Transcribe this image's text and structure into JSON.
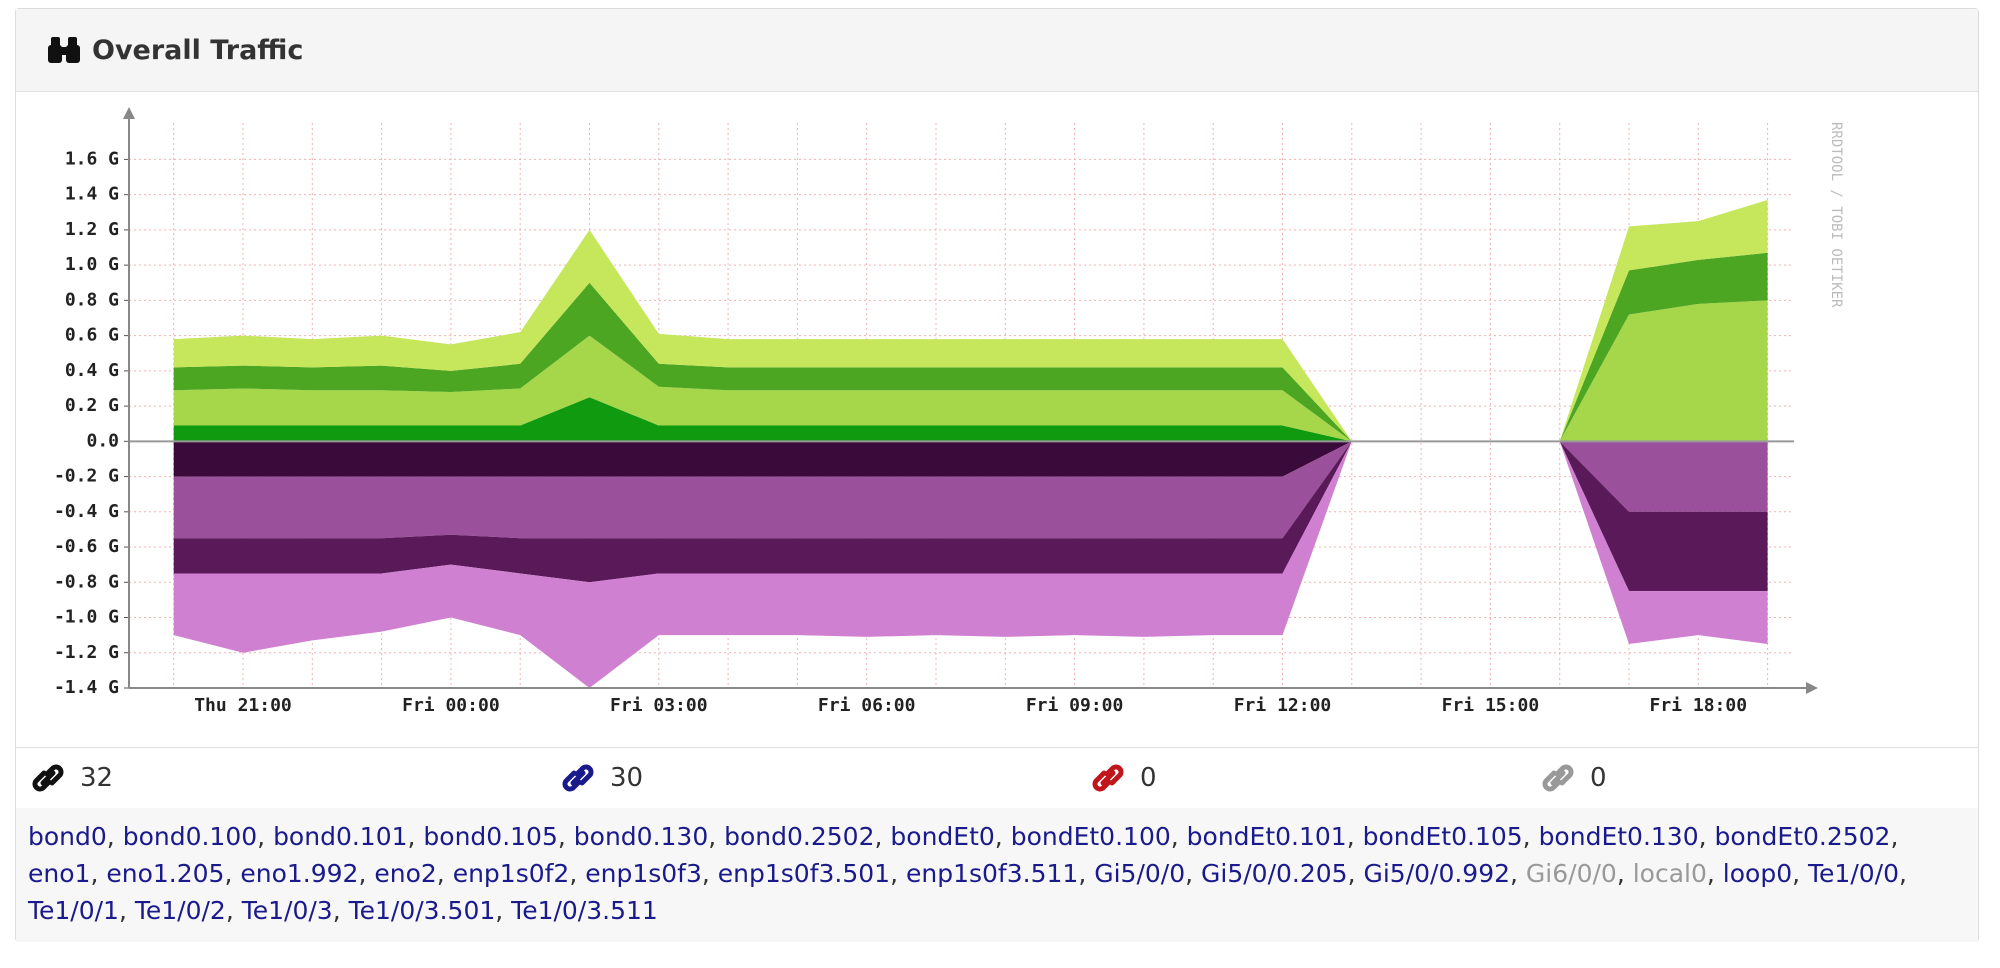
{
  "panel": {
    "title": "Overall Traffic"
  },
  "chart_data": {
    "type": "stacked-area",
    "watermark": "RRDTOOL / TOBI OETIKER",
    "categories": [
      null,
      "Thu 21:00",
      null,
      null,
      "Fri 00:00",
      null,
      null,
      "Fri 03:00",
      null,
      null,
      "Fri 06:00",
      null,
      null,
      "Fri 09:00",
      null,
      null,
      "Fri 12:00",
      null,
      null,
      "Fri 15:00",
      null,
      null,
      "Fri 18:00",
      null
    ],
    "ylim": [
      -1.4,
      1.75
    ],
    "yticks": [
      {
        "value": -1.4,
        "label": "-1.4 G"
      },
      {
        "value": -1.2,
        "label": "-1.2 G"
      },
      {
        "value": -1.0,
        "label": "-1.0 G"
      },
      {
        "value": -0.8,
        "label": "-0.8 G"
      },
      {
        "value": -0.6,
        "label": "-0.6 G"
      },
      {
        "value": -0.4,
        "label": "-0.4 G"
      },
      {
        "value": -0.2,
        "label": "-0.2 G"
      },
      {
        "value": 0,
        "label": "0.0"
      },
      {
        "value": 0.2,
        "label": "0.2 G"
      },
      {
        "value": 0.4,
        "label": "0.4 G"
      },
      {
        "value": 0.6,
        "label": "0.6 G"
      },
      {
        "value": 0.8,
        "label": "0.8 G"
      },
      {
        "value": 1.0,
        "label": "1.0 G"
      },
      {
        "value": 1.2,
        "label": "1.2 G"
      },
      {
        "value": 1.4,
        "label": "1.4 G"
      },
      {
        "value": 1.6,
        "label": "1.6 G"
      }
    ],
    "grid": true,
    "series": [
      {
        "color": "#109a10",
        "values": [
          0.09,
          0.09,
          0.09,
          0.09,
          0.09,
          0.09,
          0.25,
          0.09,
          0.09,
          0.09,
          0.09,
          0.09,
          0.09,
          0.09,
          0.09,
          0.09,
          0.09,
          0,
          0,
          0,
          0,
          0,
          0,
          0
        ]
      },
      {
        "color": "#a6d64a",
        "values": [
          0.2,
          0.21,
          0.2,
          0.2,
          0.19,
          0.21,
          0.35,
          0.22,
          0.2,
          0.2,
          0.2,
          0.2,
          0.2,
          0.2,
          0.2,
          0.2,
          0.2,
          0,
          0,
          0,
          0,
          0.72,
          0.78,
          0.8
        ]
      },
      {
        "color": "#4ca622",
        "values": [
          0.13,
          0.13,
          0.13,
          0.14,
          0.12,
          0.14,
          0.3,
          0.13,
          0.13,
          0.13,
          0.13,
          0.13,
          0.13,
          0.13,
          0.13,
          0.13,
          0.13,
          0,
          0,
          0,
          0,
          0.25,
          0.25,
          0.27
        ]
      },
      {
        "color": "#c6e65c",
        "values": [
          0.16,
          0.17,
          0.16,
          0.17,
          0.15,
          0.18,
          0.3,
          0.17,
          0.16,
          0.16,
          0.16,
          0.16,
          0.16,
          0.16,
          0.16,
          0.16,
          0.16,
          0,
          0,
          0,
          0,
          0.25,
          0.22,
          0.3
        ]
      },
      {
        "color": "#3a0a3a",
        "values": [
          -0.2,
          -0.2,
          -0.2,
          -0.2,
          -0.2,
          -0.2,
          -0.2,
          -0.2,
          -0.2,
          -0.2,
          -0.2,
          -0.2,
          -0.2,
          -0.2,
          -0.2,
          -0.2,
          -0.2,
          0,
          0,
          0,
          0,
          0,
          0,
          0
        ]
      },
      {
        "color": "#9a509a",
        "values": [
          -0.35,
          -0.35,
          -0.35,
          -0.35,
          -0.33,
          -0.35,
          -0.35,
          -0.35,
          -0.35,
          -0.35,
          -0.35,
          -0.35,
          -0.35,
          -0.35,
          -0.35,
          -0.35,
          -0.35,
          0,
          0,
          0,
          0,
          -0.4,
          -0.4,
          -0.4
        ]
      },
      {
        "color": "#5a1a5a",
        "values": [
          -0.2,
          -0.2,
          -0.2,
          -0.2,
          -0.17,
          -0.2,
          -0.25,
          -0.2,
          -0.2,
          -0.2,
          -0.2,
          -0.2,
          -0.2,
          -0.2,
          -0.2,
          -0.2,
          -0.2,
          0,
          0,
          0,
          0,
          -0.45,
          -0.45,
          -0.45
        ]
      },
      {
        "color": "#d080d0",
        "values": [
          -0.35,
          -0.45,
          -0.38,
          -0.33,
          -0.3,
          -0.35,
          -0.6,
          -0.35,
          -0.35,
          -0.35,
          -0.36,
          -0.35,
          -0.36,
          -0.35,
          -0.36,
          -0.35,
          -0.35,
          0,
          0,
          0,
          0,
          -0.3,
          -0.25,
          -0.3
        ]
      }
    ]
  },
  "stats": [
    {
      "color": "#111111",
      "count": 32
    },
    {
      "color": "#1a1a8c",
      "count": 30
    },
    {
      "color": "#c0161b",
      "count": 0
    },
    {
      "color": "#999999",
      "count": 0
    }
  ],
  "ports": [
    {
      "name": "bond0"
    },
    {
      "name": "bond0.100"
    },
    {
      "name": "bond0.101"
    },
    {
      "name": "bond0.105"
    },
    {
      "name": "bond0.130"
    },
    {
      "name": "bond0.2502"
    },
    {
      "name": "bondEt0"
    },
    {
      "name": "bondEt0.100"
    },
    {
      "name": "bondEt0.101"
    },
    {
      "name": "bondEt0.105"
    },
    {
      "name": "bondEt0.130"
    },
    {
      "name": "bondEt0.2502"
    },
    {
      "name": "eno1"
    },
    {
      "name": "eno1.205"
    },
    {
      "name": "eno1.992"
    },
    {
      "name": "eno2"
    },
    {
      "name": "enp1s0f2"
    },
    {
      "name": "enp1s0f3"
    },
    {
      "name": "enp1s0f3.501"
    },
    {
      "name": "enp1s0f3.511"
    },
    {
      "name": "Gi5/0/0"
    },
    {
      "name": "Gi5/0/0.205"
    },
    {
      "name": "Gi5/0/0.992"
    },
    {
      "name": "Gi6/0/0",
      "disabled": true
    },
    {
      "name": "local0",
      "disabled": true
    },
    {
      "name": "loop0"
    },
    {
      "name": "Te1/0/0"
    },
    {
      "name": "Te1/0/1"
    },
    {
      "name": "Te1/0/2"
    },
    {
      "name": "Te1/0/3"
    },
    {
      "name": "Te1/0/3.501"
    },
    {
      "name": "Te1/0/3.511"
    }
  ]
}
